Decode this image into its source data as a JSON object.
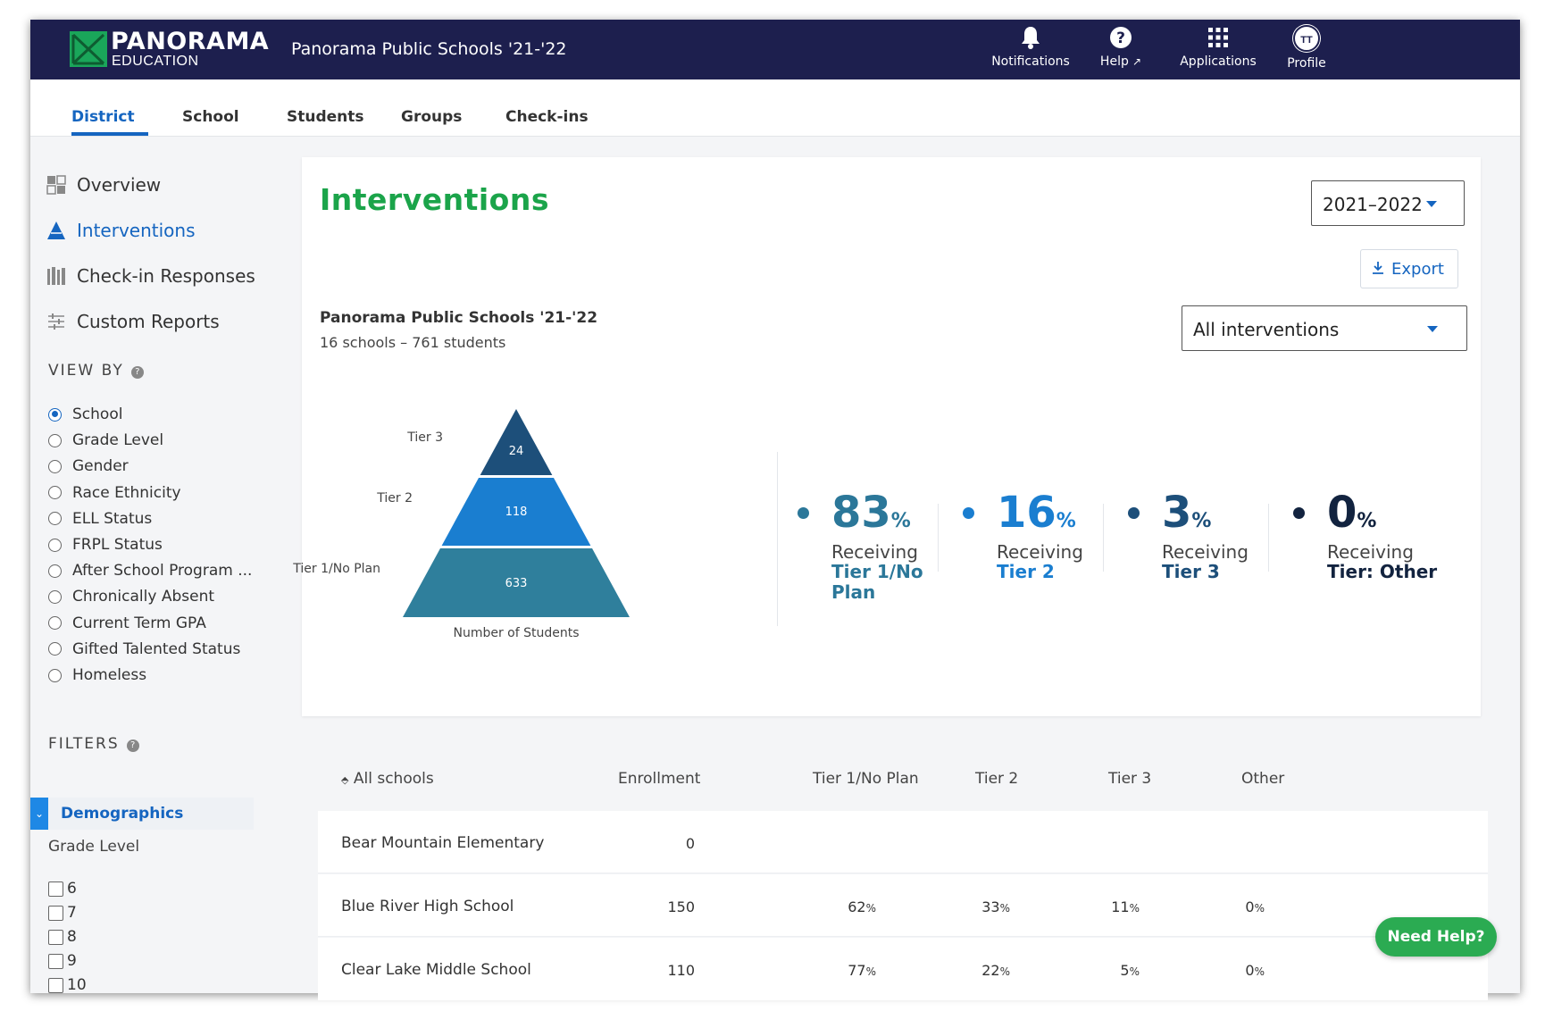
{
  "brand": {
    "name": "PANORAMA",
    "sub": "EDUCATION"
  },
  "header": {
    "district_title": "Panorama Public Schools '21-'22",
    "nav": [
      {
        "label": "Notifications",
        "icon": "bell-icon"
      },
      {
        "label": "Help",
        "icon": "question-circle-icon"
      },
      {
        "label": "Applications",
        "icon": "grid-icon"
      },
      {
        "label": "Profile",
        "icon": "avatar",
        "initials": "TT"
      }
    ]
  },
  "tabs": [
    "District",
    "School",
    "Students",
    "Groups",
    "Check-ins"
  ],
  "sidebar": {
    "links": [
      {
        "label": "Overview",
        "icon": "overview-icon"
      },
      {
        "label": "Interventions",
        "icon": "pyramid-icon"
      },
      {
        "label": "Check-in Responses",
        "icon": "books-icon"
      },
      {
        "label": "Custom Reports",
        "icon": "sliders-icon"
      }
    ],
    "view_by_title": "VIEW BY",
    "view_by": [
      "School",
      "Grade Level",
      "Gender",
      "Race Ethnicity",
      "ELL Status",
      "FRPL Status",
      "After School Program ...",
      "Chronically Absent",
      "Current Term GPA",
      "Gifted Talented Status",
      "Homeless"
    ],
    "view_by_selected": "School",
    "filters_title": "FILTERS",
    "demographics_label": "Demographics",
    "grade_level_label": "Grade Level",
    "grades": [
      "6",
      "7",
      "8",
      "9",
      "10"
    ]
  },
  "main": {
    "title": "Interventions",
    "year": "2021–2022",
    "export_label": "Export",
    "intervention_filter": "All interventions",
    "summary_name": "Panorama Public Schools '21-'22",
    "summary_sub": "16 schools – 761 students",
    "pyramid": {
      "xlabel": "Number of Students",
      "tiers": [
        {
          "label": "Tier 3",
          "value": 24,
          "color": "#1d4f7a"
        },
        {
          "label": "Tier 2",
          "value": 118,
          "color": "#1a7ed0"
        },
        {
          "label": "Tier 1/No Plan",
          "value": 633,
          "color": "#2f7f9c"
        }
      ]
    },
    "stats": [
      {
        "value": "83",
        "receiving": "Receiving",
        "tier": "Tier 1/No Plan",
        "color": "#2b7799"
      },
      {
        "value": "16",
        "receiving": "Receiving",
        "tier": "Tier 2",
        "color": "#1a7ed0"
      },
      {
        "value": "3",
        "receiving": "Receiving",
        "tier": "Tier 3",
        "color": "#1d4f7a"
      },
      {
        "value": "0",
        "receiving": "Receiving",
        "tier": "Tier: Other",
        "color": "#12233f"
      }
    ]
  },
  "table": {
    "headers": [
      "All schools",
      "Enrollment",
      "Tier 1/No Plan",
      "Tier 2",
      "Tier 3",
      "Other"
    ],
    "rows": [
      {
        "school": "Bear Mountain Elementary",
        "enrollment": "0",
        "tier1": "",
        "tier2": "",
        "tier3": "",
        "other": ""
      },
      {
        "school": "Blue River High School",
        "enrollment": "150",
        "tier1": "62",
        "tier2": "33",
        "tier3": "11",
        "other": "0"
      },
      {
        "school": "Clear Lake Middle School",
        "enrollment": "110",
        "tier1": "77",
        "tier2": "22",
        "tier3": "5",
        "other": "0"
      }
    ]
  },
  "help_button": "Need Help?"
}
